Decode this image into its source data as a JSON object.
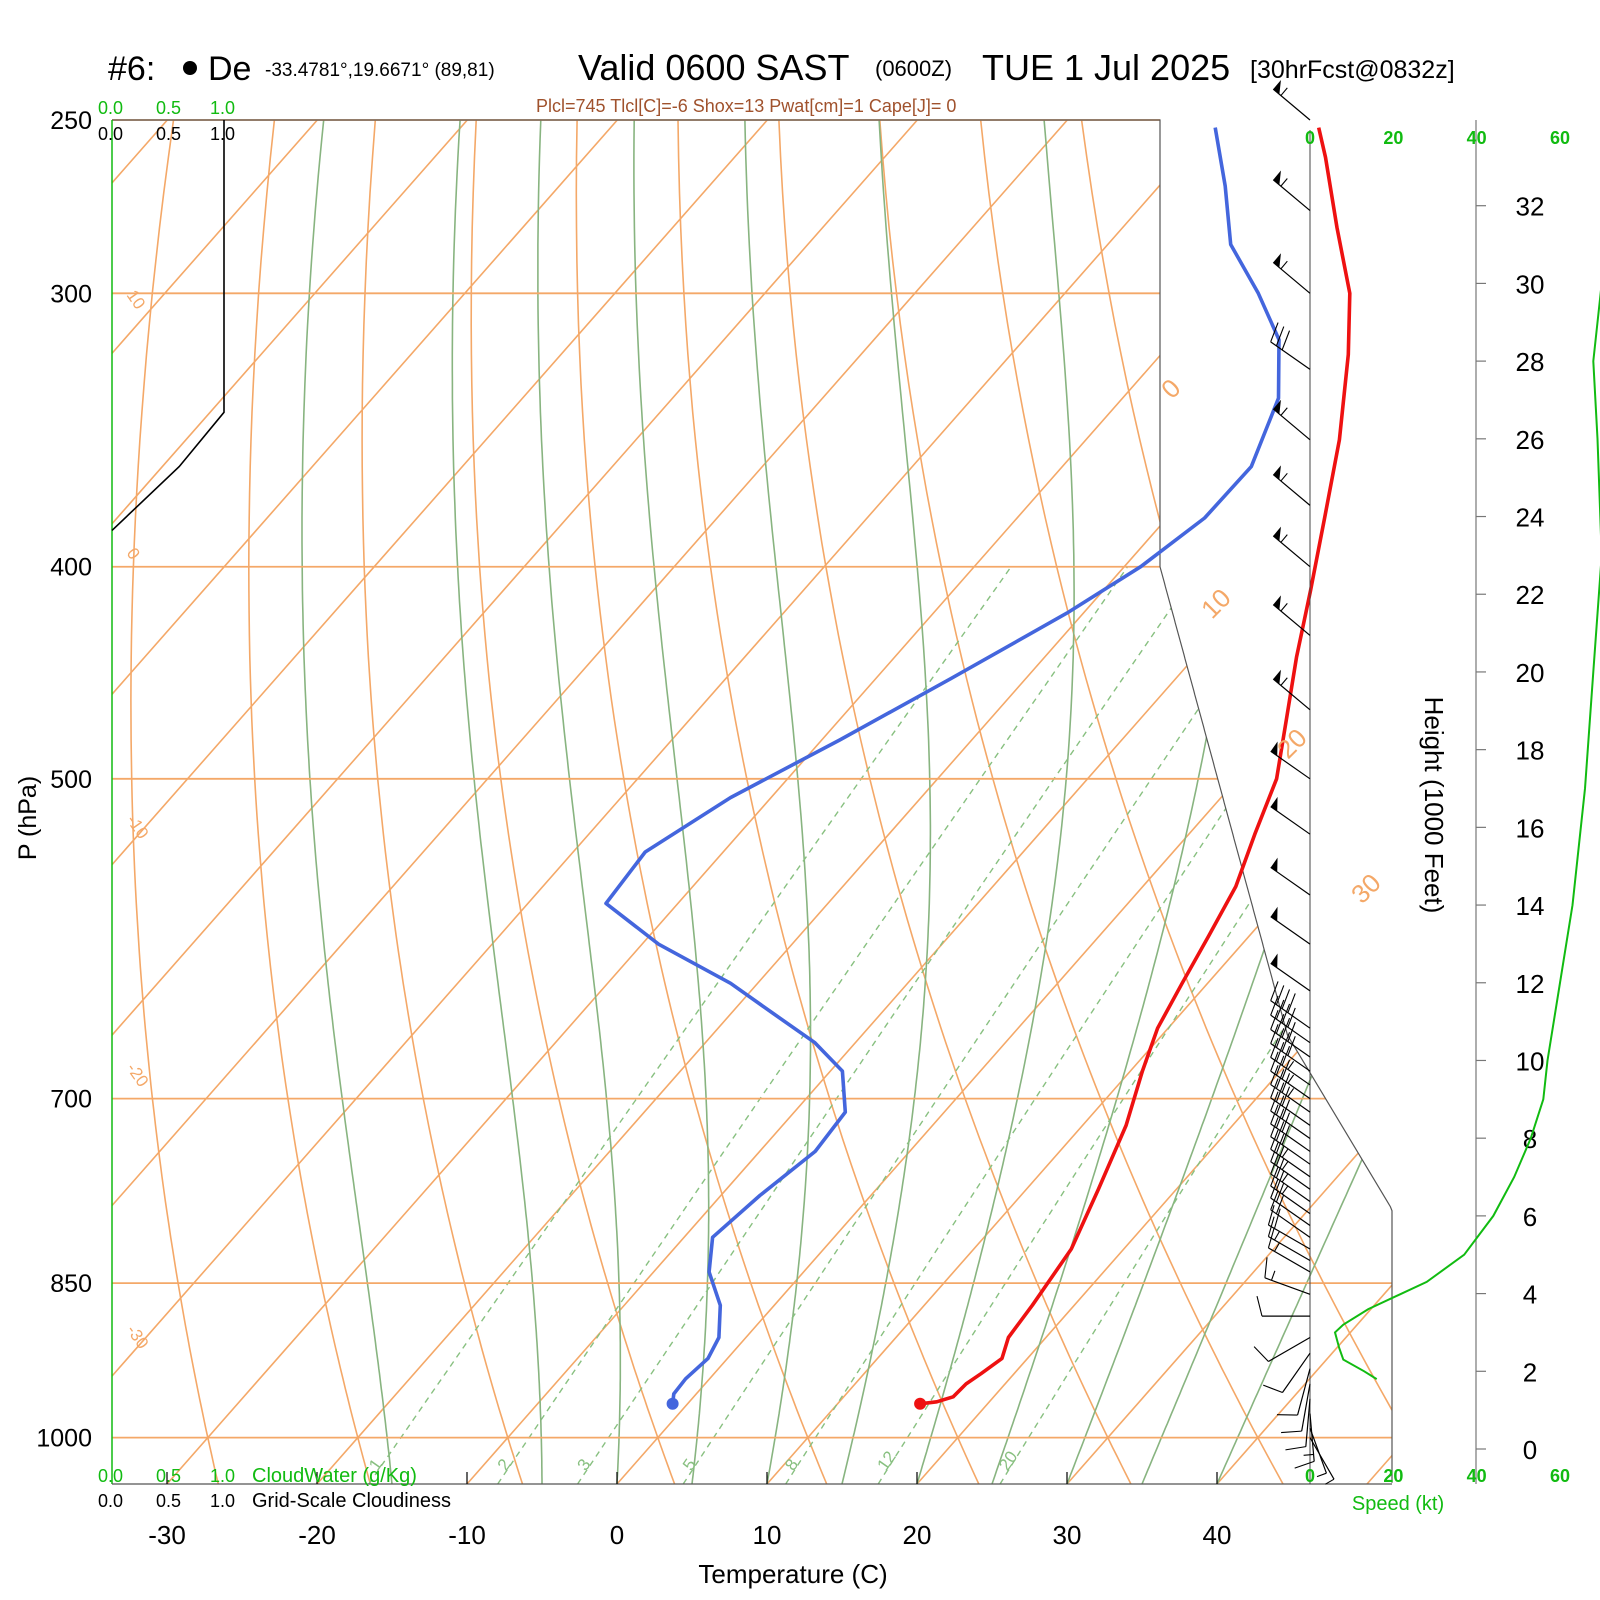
{
  "header": {
    "prefix": "#6:",
    "site_name": "De",
    "coords": "-33.4781°,19.6671° (89,81)",
    "valid": "Valid 0600 SAST",
    "utc": "(0600Z)",
    "date": "TUE 1 Jul 2025",
    "forecast": "[30hrFcst@0832z]",
    "indices": "Plcl=745 Tlcl[C]=-6 Shox=13 Pwat[cm]=1 Cape[J]= 0"
  },
  "colors": {
    "temperature": "#ee1111",
    "dewpoint": "#4466dd",
    "isotherm": "#f4a868",
    "dry_adiabat": "#f4a868",
    "moist_adiabat": "#88b480",
    "mixing_ratio": "#88c080",
    "speed": "#11bb11",
    "text": "#000000",
    "indices_text": "#a0522d"
  },
  "chart_data": {
    "type": "skew-t log-p sounding",
    "xlabel": "Temperature (C)",
    "ylabel": "P (hPa)",
    "x_ticks": [
      -30,
      -20,
      -10,
      0,
      10,
      20,
      30,
      40
    ],
    "pressure_ticks": [
      250,
      300,
      400,
      500,
      700,
      850,
      1000
    ],
    "pressure_range": [
      250,
      1050
    ],
    "isotherm_labels": [
      "10",
      "0",
      "-10",
      "-20",
      "-30"
    ],
    "top_isotherm_labels": [
      "0",
      "10",
      "20",
      "30"
    ],
    "mixing_ratio_labels": [
      "1",
      "2",
      "3",
      "5",
      "8",
      "12",
      "20"
    ],
    "temperature_profile": [
      {
        "p": 965,
        "t": 15.5
      },
      {
        "p": 963,
        "t": 16.5
      },
      {
        "p": 958,
        "t": 17.3
      },
      {
        "p": 945,
        "t": 17.4
      },
      {
        "p": 935,
        "t": 17.8
      },
      {
        "p": 920,
        "t": 18.3
      },
      {
        "p": 900,
        "t": 17.5
      },
      {
        "p": 870,
        "t": 17.2
      },
      {
        "p": 820,
        "t": 16.5
      },
      {
        "p": 770,
        "t": 14.8
      },
      {
        "p": 720,
        "t": 12.9
      },
      {
        "p": 680,
        "t": 10.8
      },
      {
        "p": 650,
        "t": 9.3
      },
      {
        "p": 620,
        "t": 8.3
      },
      {
        "p": 590,
        "t": 7.3
      },
      {
        "p": 560,
        "t": 6.2
      },
      {
        "p": 530,
        "t": 4.4
      },
      {
        "p": 500,
        "t": 2.6
      },
      {
        "p": 470,
        "t": -0.2
      },
      {
        "p": 440,
        "t": -3.2
      },
      {
        "p": 410,
        "t": -6.2
      },
      {
        "p": 380,
        "t": -9.5
      },
      {
        "p": 350,
        "t": -13.1
      },
      {
        "p": 320,
        "t": -17.5
      },
      {
        "p": 300,
        "t": -21.0
      },
      {
        "p": 280,
        "t": -25.7
      },
      {
        "p": 260,
        "t": -30.6
      },
      {
        "p": 252,
        "t": -32.8
      }
    ],
    "dewpoint_profile": [
      {
        "p": 965,
        "td": -1.0
      },
      {
        "p": 955,
        "td": -1.5
      },
      {
        "p": 940,
        "td": -1.6
      },
      {
        "p": 920,
        "td": -1.3
      },
      {
        "p": 900,
        "td": -1.8
      },
      {
        "p": 870,
        "td": -3.6
      },
      {
        "p": 840,
        "td": -6.3
      },
      {
        "p": 810,
        "td": -8.1
      },
      {
        "p": 775,
        "td": -7.4
      },
      {
        "p": 740,
        "td": -6.3
      },
      {
        "p": 710,
        "td": -6.6
      },
      {
        "p": 680,
        "td": -9.2
      },
      {
        "p": 660,
        "td": -12.7
      },
      {
        "p": 640,
        "td": -17.2
      },
      {
        "p": 620,
        "td": -21.8
      },
      {
        "p": 595,
        "td": -28.9
      },
      {
        "p": 570,
        "td": -34.8
      },
      {
        "p": 540,
        "td": -35.2
      },
      {
        "p": 510,
        "td": -32.7
      },
      {
        "p": 480,
        "td": -28.8
      },
      {
        "p": 450,
        "td": -25.0
      },
      {
        "p": 420,
        "td": -21.1
      },
      {
        "p": 400,
        "td": -18.9
      },
      {
        "p": 380,
        "td": -17.5
      },
      {
        "p": 360,
        "td": -17.4
      },
      {
        "p": 335,
        "td": -19.6
      },
      {
        "p": 315,
        "td": -23.0
      },
      {
        "p": 300,
        "td": -27.1
      },
      {
        "p": 285,
        "td": -31.8
      },
      {
        "p": 268,
        "td": -35.6
      },
      {
        "p": 252,
        "td": -39.7
      }
    ],
    "cloud_scale_top_green": [
      "0.0",
      "0.5",
      "1.0"
    ],
    "cloud_scale_top_black": [
      "0.0",
      "0.5",
      "1.0"
    ],
    "cloud_scale_bottom_green": [
      "0.0",
      "0.5",
      "1.0"
    ],
    "cloud_scale_bottom_black": [
      "0.0",
      "0.5",
      "1.0"
    ],
    "cloudwater_label": "CloudWater (g/Kg)",
    "cloudiness_label": "Grid-Scale Cloudiness",
    "cloudiness_profile": [
      {
        "p": 250,
        "v": 0.5
      },
      {
        "p": 340,
        "v": 0.5
      },
      {
        "p": 360,
        "v": 0.3
      },
      {
        "p": 385,
        "v": 0.0
      }
    ],
    "speed_label": "Speed (kt)",
    "speed_ticks": [
      "0",
      "20",
      "40",
      "60"
    ],
    "height_label": "Height (1000 Feet)",
    "height_ticks": [
      0,
      2,
      4,
      6,
      8,
      10,
      12,
      14,
      16,
      18,
      20,
      22,
      24,
      26,
      28,
      30,
      32
    ],
    "wind_speed_profile": [
      {
        "h": 1.8,
        "s": 16
      },
      {
        "h": 2.0,
        "s": 13
      },
      {
        "h": 2.3,
        "s": 8
      },
      {
        "h": 2.6,
        "s": 7
      },
      {
        "h": 3.0,
        "s": 6
      },
      {
        "h": 3.2,
        "s": 8
      },
      {
        "h": 3.6,
        "s": 14
      },
      {
        "h": 4.3,
        "s": 28
      },
      {
        "h": 5.0,
        "s": 37
      },
      {
        "h": 6.0,
        "s": 44
      },
      {
        "h": 7.0,
        "s": 49
      },
      {
        "h": 8.0,
        "s": 53
      },
      {
        "h": 9.0,
        "s": 56
      },
      {
        "h": 10.0,
        "s": 57
      },
      {
        "h": 12.0,
        "s": 60
      },
      {
        "h": 14.0,
        "s": 63
      },
      {
        "h": 17.0,
        "s": 66
      },
      {
        "h": 20.0,
        "s": 68
      },
      {
        "h": 23.0,
        "s": 70
      },
      {
        "h": 26.0,
        "s": 69
      },
      {
        "h": 28.0,
        "s": 68
      },
      {
        "h": 30.0,
        "s": 70
      },
      {
        "h": 32.0,
        "s": 72
      },
      {
        "h": 34.0,
        "s": 74
      }
    ],
    "wind_barbs": [
      {
        "p": 250,
        "dir": 310,
        "spd": 55
      },
      {
        "p": 275,
        "dir": 310,
        "spd": 55
      },
      {
        "p": 300,
        "dir": 310,
        "spd": 55
      },
      {
        "p": 325,
        "dir": 305,
        "spd": 30
      },
      {
        "p": 350,
        "dir": 310,
        "spd": 55
      },
      {
        "p": 375,
        "dir": 310,
        "spd": 55
      },
      {
        "p": 400,
        "dir": 310,
        "spd": 55
      },
      {
        "p": 430,
        "dir": 310,
        "spd": 55
      },
      {
        "p": 465,
        "dir": 310,
        "spd": 55
      },
      {
        "p": 500,
        "dir": 305,
        "spd": 50
      },
      {
        "p": 530,
        "dir": 305,
        "spd": 50
      },
      {
        "p": 565,
        "dir": 305,
        "spd": 50
      },
      {
        "p": 595,
        "dir": 305,
        "spd": 50
      },
      {
        "p": 625,
        "dir": 305,
        "spd": 50
      },
      {
        "p": 650,
        "dir": 305,
        "spd": 40
      },
      {
        "p": 660,
        "dir": 305,
        "spd": 40
      },
      {
        "p": 670,
        "dir": 305,
        "spd": 40
      },
      {
        "p": 680,
        "dir": 305,
        "spd": 40
      },
      {
        "p": 690,
        "dir": 305,
        "spd": 35
      },
      {
        "p": 700,
        "dir": 305,
        "spd": 35
      },
      {
        "p": 710,
        "dir": 305,
        "spd": 35
      },
      {
        "p": 720,
        "dir": 305,
        "spd": 30
      },
      {
        "p": 730,
        "dir": 305,
        "spd": 30
      },
      {
        "p": 740,
        "dir": 305,
        "spd": 30
      },
      {
        "p": 750,
        "dir": 305,
        "spd": 30
      },
      {
        "p": 760,
        "dir": 305,
        "spd": 25
      },
      {
        "p": 770,
        "dir": 305,
        "spd": 25
      },
      {
        "p": 780,
        "dir": 305,
        "spd": 25
      },
      {
        "p": 790,
        "dir": 305,
        "spd": 25
      },
      {
        "p": 800,
        "dir": 305,
        "spd": 20
      },
      {
        "p": 810,
        "dir": 305,
        "spd": 20
      },
      {
        "p": 820,
        "dir": 300,
        "spd": 20
      },
      {
        "p": 830,
        "dir": 300,
        "spd": 15
      },
      {
        "p": 840,
        "dir": 300,
        "spd": 15
      },
      {
        "p": 860,
        "dir": 290,
        "spd": 15
      },
      {
        "p": 880,
        "dir": 270,
        "spd": 10
      },
      {
        "p": 900,
        "dir": 240,
        "spd": 10
      },
      {
        "p": 915,
        "dir": 215,
        "spd": 10
      },
      {
        "p": 930,
        "dir": 195,
        "spd": 10
      },
      {
        "p": 945,
        "dir": 190,
        "spd": 10
      },
      {
        "p": 960,
        "dir": 185,
        "spd": 10
      },
      {
        "p": 975,
        "dir": 175,
        "spd": 15
      },
      {
        "p": 990,
        "dir": 160,
        "spd": 5
      },
      {
        "p": 1000,
        "dir": 150,
        "spd": 5
      }
    ]
  }
}
